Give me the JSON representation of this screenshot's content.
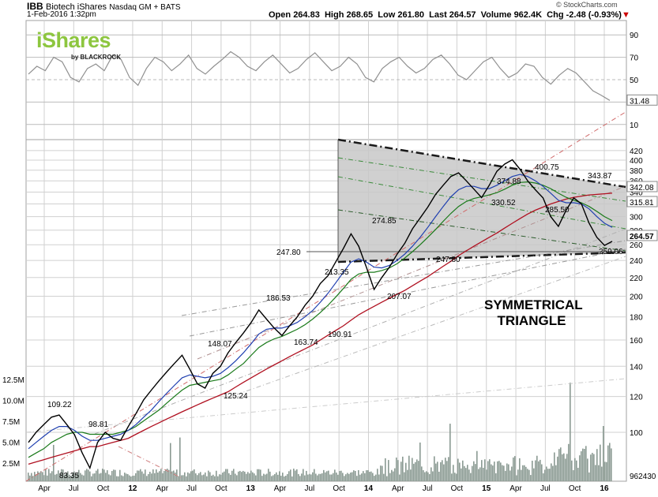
{
  "header": {
    "symbol": "IBB",
    "name": "Biotech iShares",
    "exchange": "Nasdaq GM + BATS",
    "date": "1-Feb-2016 1:32pm",
    "watermark": "© StockCharts.com",
    "open_label": "Open",
    "open": "264.83",
    "high_label": "High",
    "high": "268.65",
    "low_label": "Low",
    "low": "261.80",
    "last_label": "Last",
    "last": "264.57",
    "volume_label": "Volume",
    "volume": "962.4K",
    "chg_label": "Chg",
    "chg": "-2.48 (-0.93%)",
    "chg_color": "#cc0000"
  },
  "logo": {
    "brand": "iShares",
    "sub": "by BLACKROCK",
    "color": "#8dc63f"
  },
  "colors": {
    "price": "#000000",
    "ma_fast": "#1f3fb0",
    "ma_mid": "#1a7a1a",
    "ma_slow": "#b01020",
    "triangle_fill": "#c8c8c8",
    "volume": "#8a9a92",
    "rsi": "#909090",
    "grid": "#d0d0d0"
  },
  "chart_data": [
    {
      "type": "line",
      "panel": "indicator",
      "y_ticks": [
        "90",
        "70",
        "50",
        "30",
        "10"
      ],
      "ylim": [
        0,
        100
      ],
      "last_value_label": "31.48",
      "series": [
        {
          "values": [
            55,
            62,
            58,
            70,
            66,
            52,
            48,
            60,
            64,
            58,
            72,
            68,
            52,
            45,
            60,
            70,
            66,
            58,
            64,
            72,
            60,
            55,
            62,
            68,
            75,
            70,
            62,
            58,
            66,
            72,
            64,
            56,
            60,
            68,
            74,
            66,
            58,
            62,
            70,
            64,
            52,
            48,
            60,
            66,
            70,
            62,
            56,
            60,
            68,
            72,
            64,
            54,
            50,
            58,
            66,
            70,
            60,
            52,
            56,
            64,
            62,
            52,
            46,
            54,
            60,
            56,
            48,
            40,
            36,
            31.48
          ]
        }
      ]
    },
    {
      "type": "line",
      "panel": "price",
      "x_ticks": [
        "Apr",
        "Jul",
        "Oct",
        "12",
        "Apr",
        "Jul",
        "Oct",
        "13",
        "Apr",
        "Jul",
        "Oct",
        "14",
        "Apr",
        "Jul",
        "Oct",
        "15",
        "Apr",
        "Jul",
        "Oct",
        "16"
      ],
      "y_ticks": [
        "420",
        "400",
        "380",
        "360",
        "340",
        "320",
        "300",
        "280",
        "260",
        "240",
        "220",
        "200",
        "180",
        "160",
        "140",
        "120",
        "100"
      ],
      "ylim": [
        85,
        430
      ],
      "log_scale": true,
      "grid": true,
      "volume_ticks": [
        "12.5M",
        "10.0M",
        "7.5M",
        "5.0M",
        "2.5M"
      ],
      "volume_last_label": "962430",
      "annotations": [
        "109.22",
        "98.81",
        "83.35",
        "148.07",
        "125.24",
        "186.53",
        "163.74",
        "190.91",
        "213.35",
        "274.85",
        "207.07",
        "247.80",
        "374.88",
        "330.52",
        "400.75",
        "343.87",
        "285.50",
        "259.06",
        "247.80"
      ],
      "pattern_label_1": "SYMMETRICAL",
      "pattern_label_2": "TRIANGLE",
      "axis_value_labels": [
        "342.08",
        "315.81",
        "264.57"
      ],
      "series": [
        {
          "values": [
            95,
            100,
            104,
            108,
            109.22,
            104,
            98.81,
            90,
            83.35,
            95,
            100,
            97,
            96,
            103,
            110,
            118,
            124,
            130,
            136,
            142,
            148.07,
            138,
            128,
            125.24,
            135,
            140,
            150,
            158,
            166,
            175,
            186.53,
            178,
            170,
            163.74,
            172,
            180,
            190.91,
            200,
            213.35,
            222,
            238,
            255,
            274.85,
            258,
            232,
            207.07,
            220,
            232,
            247.8,
            262,
            282,
            298,
            315,
            336,
            352,
            368,
            374.88,
            360,
            345,
            330.52,
            352,
            378,
            392,
            400.75,
            382,
            360,
            343.87,
            330,
            300,
            285.5,
            310,
            330,
            320,
            290,
            270,
            259.06,
            264.57
          ]
        },
        {
          "values": [
            92,
            95,
            98,
            101,
            103,
            103,
            101,
            98,
            96,
            96,
            97,
            98,
            99,
            101,
            104,
            108,
            112,
            117,
            122,
            127,
            132,
            134,
            133,
            132,
            133,
            135,
            139,
            144,
            150,
            157,
            165,
            169,
            170,
            170,
            172,
            175,
            180,
            186,
            194,
            203,
            214,
            226,
            238,
            242,
            238,
            232,
            231,
            234,
            240,
            248,
            258,
            270,
            284,
            300,
            316,
            332,
            344,
            350,
            350,
            346,
            346,
            352,
            360,
            368,
            372,
            368,
            360,
            350,
            338,
            326,
            322,
            322,
            320,
            312,
            300,
            290,
            284
          ]
        },
        {
          "values": [
            88,
            90,
            92,
            95,
            97,
            99,
            100,
            100,
            99,
            99,
            99,
            99,
            100,
            101,
            103,
            106,
            109,
            112,
            116,
            120,
            124,
            127,
            128,
            129,
            130,
            131,
            134,
            138,
            142,
            148,
            154,
            158,
            161,
            163,
            166,
            169,
            173,
            178,
            184,
            191,
            199,
            208,
            218,
            224,
            226,
            226,
            228,
            231,
            236,
            243,
            251,
            260,
            270,
            281,
            293,
            305,
            316,
            324,
            329,
            332,
            335,
            339,
            345,
            352,
            357,
            358,
            356,
            352,
            346,
            338,
            331,
            326,
            322,
            316,
            308,
            300,
            294
          ]
        },
        {
          "values": [
            85,
            86,
            87,
            88,
            89,
            90,
            91,
            92,
            93,
            93,
            94,
            95,
            96,
            97,
            99,
            101,
            103,
            105,
            107,
            109,
            111,
            113,
            115,
            117,
            119,
            121,
            123,
            126,
            129,
            132,
            135,
            138,
            141,
            144,
            147,
            150,
            153,
            156,
            160,
            164,
            168,
            172,
            177,
            182,
            186,
            190,
            194,
            198,
            202,
            206,
            211,
            216,
            221,
            227,
            233,
            239,
            246,
            252,
            258,
            264,
            270,
            276,
            283,
            290,
            297,
            304,
            310,
            315,
            320,
            324,
            328,
            331,
            333,
            335,
            336,
            337,
            338
          ]
        }
      ]
    }
  ]
}
